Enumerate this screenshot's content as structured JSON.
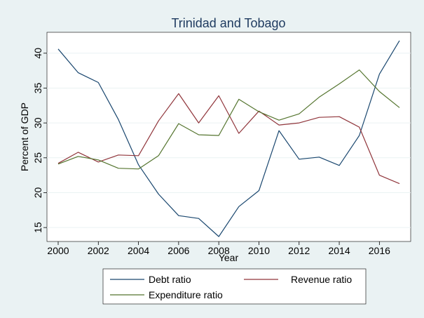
{
  "chart_data": {
    "type": "line",
    "title": "Trinidad and Tobago",
    "xlabel": "Year",
    "ylabel": "Percent of GDP",
    "xlim": [
      2000,
      2017
    ],
    "ylim": [
      13,
      43
    ],
    "x_ticks": [
      2000,
      2002,
      2004,
      2006,
      2008,
      2010,
      2012,
      2014,
      2016
    ],
    "y_ticks": [
      15,
      20,
      25,
      30,
      35,
      40
    ],
    "grid": true,
    "legend_position": "bottom",
    "x": [
      2000,
      2001,
      2002,
      2003,
      2004,
      2005,
      2006,
      2007,
      2008,
      2009,
      2010,
      2011,
      2012,
      2013,
      2014,
      2015,
      2016,
      2017
    ],
    "series": [
      {
        "name": "Debt ratio",
        "color": "#1a476f",
        "values": [
          40.6,
          37.2,
          35.8,
          30.5,
          24.0,
          19.8,
          16.7,
          16.3,
          13.7,
          18.0,
          20.3,
          28.9,
          24.8,
          25.1,
          23.9,
          28.2,
          37.0,
          41.8
        ]
      },
      {
        "name": "Revenue ratio",
        "color": "#90353b",
        "values": [
          24.2,
          25.8,
          24.4,
          25.4,
          25.3,
          30.3,
          34.2,
          30.0,
          33.9,
          28.5,
          31.7,
          29.7,
          30.0,
          30.8,
          30.9,
          29.4,
          22.5,
          21.3
        ]
      },
      {
        "name": "Expenditure ratio",
        "color": "#55752f",
        "values": [
          24.1,
          25.2,
          24.7,
          23.5,
          23.4,
          25.3,
          29.9,
          28.3,
          28.2,
          33.4,
          31.6,
          30.4,
          31.3,
          33.7,
          35.6,
          37.6,
          34.5,
          32.2
        ]
      }
    ]
  }
}
